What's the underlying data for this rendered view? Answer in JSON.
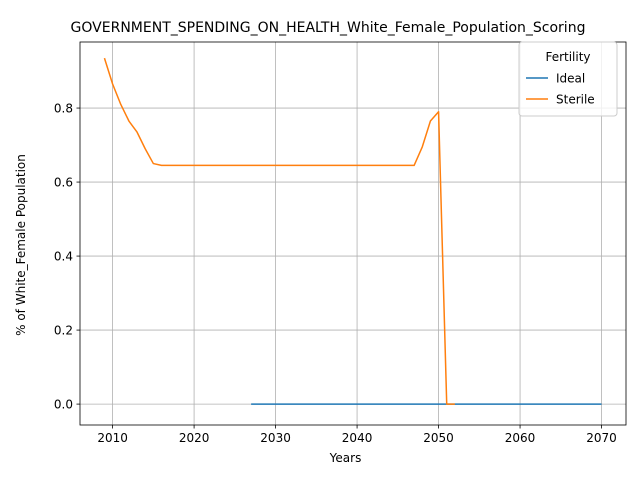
{
  "chart_data": {
    "type": "line",
    "title": "GOVERNMENT_SPENDING_ON_HEALTH_White_Female_Population_Scoring",
    "xlabel": "Years",
    "ylabel": "% of White_Female Population",
    "xlim": [
      2006,
      2073
    ],
    "ylim": [
      -0.0565,
      0.9785
    ],
    "xticks": [
      2010,
      2020,
      2030,
      2040,
      2050,
      2060,
      2070
    ],
    "yticks": [
      0.0,
      0.2,
      0.4,
      0.6,
      0.8
    ],
    "grid": true,
    "legend": {
      "title": "Fertility",
      "placement": "top-right"
    },
    "series": [
      {
        "name": "Ideal",
        "color": "#1f77b4",
        "x": [
          2027,
          2030,
          2040,
          2050,
          2060,
          2070
        ],
        "y": [
          0,
          0,
          0,
          0,
          0,
          0
        ]
      },
      {
        "name": "Sterile",
        "color": "#ff7f0e",
        "x": [
          2009,
          2010,
          2011,
          2012,
          2013,
          2014,
          2015,
          2016,
          2017,
          2020,
          2025,
          2030,
          2035,
          2040,
          2045,
          2047,
          2048,
          2049,
          2050,
          2051,
          2052
        ],
        "y": [
          0.935,
          0.865,
          0.81,
          0.765,
          0.735,
          0.69,
          0.65,
          0.645,
          0.645,
          0.645,
          0.645,
          0.645,
          0.645,
          0.645,
          0.645,
          0.645,
          0.695,
          0.765,
          0.79,
          0.0,
          0.0
        ]
      }
    ]
  }
}
